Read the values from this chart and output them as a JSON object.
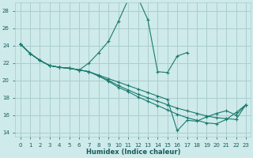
{
  "xlabel": "Humidex (Indice chaleur)",
  "background_color": "#ceeaea",
  "grid_color": "#aacece",
  "line_color": "#1a7a6e",
  "xlim": [
    -0.5,
    23.5
  ],
  "ylim": [
    13.5,
    29.0
  ],
  "yticks": [
    14,
    16,
    18,
    20,
    22,
    24,
    26,
    28
  ],
  "xticks": [
    0,
    1,
    2,
    3,
    4,
    5,
    6,
    7,
    8,
    9,
    10,
    11,
    12,
    13,
    14,
    15,
    16,
    17,
    18,
    19,
    20,
    21,
    22,
    23
  ],
  "tick_fontsize": 5.0,
  "xlabel_fontsize": 6.0,
  "series": [
    {
      "x": [
        0,
        1,
        2,
        3,
        4,
        5,
        6,
        7,
        8,
        9,
        10,
        11,
        12,
        13,
        14,
        15,
        16,
        17
      ],
      "y": [
        24.2,
        23.1,
        22.3,
        21.7,
        21.5,
        21.4,
        21.2,
        22.0,
        23.2,
        24.5,
        26.8,
        29.3,
        29.5,
        27.0,
        21.0,
        20.9,
        22.8,
        23.2
      ]
    },
    {
      "x": [
        0,
        1,
        2,
        3,
        4,
        5,
        6,
        7,
        8,
        9,
        10,
        11,
        12,
        13,
        14,
        15,
        16,
        17,
        18,
        19,
        20,
        21,
        22,
        23
      ],
      "y": [
        24.2,
        23.1,
        22.3,
        21.7,
        21.5,
        21.4,
        21.2,
        21.0,
        20.6,
        20.2,
        19.8,
        19.4,
        19.0,
        18.6,
        18.2,
        17.8,
        14.2,
        15.4,
        15.3,
        15.8,
        16.2,
        16.5,
        16.0,
        17.2
      ]
    },
    {
      "x": [
        0,
        1,
        2,
        3,
        4,
        5,
        6,
        7,
        8,
        9,
        10,
        11,
        12,
        13,
        14,
        15,
        16,
        17,
        18,
        19,
        20,
        21,
        22,
        23
      ],
      "y": [
        24.2,
        23.1,
        22.3,
        21.7,
        21.5,
        21.4,
        21.2,
        21.0,
        20.5,
        20.0,
        19.4,
        18.9,
        18.4,
        18.0,
        17.6,
        17.2,
        16.8,
        16.5,
        16.2,
        15.9,
        15.7,
        15.6,
        15.5,
        17.2
      ]
    },
    {
      "x": [
        0,
        1,
        2,
        3,
        4,
        5,
        6,
        7,
        8,
        9,
        10,
        11,
        12,
        13,
        14,
        15,
        16,
        17,
        18,
        19,
        20,
        21,
        22,
        23
      ],
      "y": [
        24.2,
        23.1,
        22.3,
        21.7,
        21.5,
        21.4,
        21.2,
        21.0,
        20.5,
        19.9,
        19.2,
        18.7,
        18.1,
        17.6,
        17.1,
        16.6,
        16.1,
        15.7,
        15.4,
        15.1,
        15.0,
        15.5,
        16.3,
        17.2
      ]
    }
  ]
}
